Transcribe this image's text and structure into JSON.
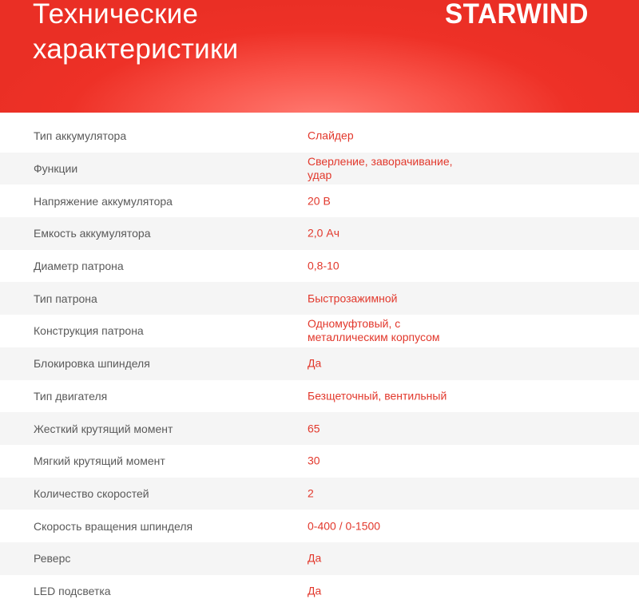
{
  "header": {
    "title_line1": "Технические",
    "title_line2": "характеристики",
    "brand": "STARWIND",
    "accent_color": "#ee3127"
  },
  "specs": [
    {
      "label": "Тип аккумулятора",
      "value": "Слайдер"
    },
    {
      "label": "Функции",
      "value": "Сверление, заворачивание, удар"
    },
    {
      "label": "Напряжение аккумулятора",
      "value": "20 В"
    },
    {
      "label": "Емкость аккумулятора",
      "value": "2,0 Ач"
    },
    {
      "label": "Диаметр патрона",
      "value": "0,8-10"
    },
    {
      "label": "Тип патрона",
      "value": "Быстрозажимной"
    },
    {
      "label": "Конструкция патрона",
      "value": "Одномуфтовый, с металлическим корпусом"
    },
    {
      "label": "Блокировка шпинделя",
      "value": "Да"
    },
    {
      "label": "Тип двигателя",
      "value": "Безщеточный, вентильный"
    },
    {
      "label": "Жесткий крутящий момент",
      "value": "65"
    },
    {
      "label": "Мягкий крутящий момент",
      "value": "30"
    },
    {
      "label": "Количество скоростей",
      "value": "2"
    },
    {
      "label": "Скорость вращения шпинделя",
      "value": "0-400 / 0-1500"
    },
    {
      "label": "Реверс",
      "value": "Да"
    },
    {
      "label": "LED подсветка",
      "value": "Да"
    }
  ]
}
